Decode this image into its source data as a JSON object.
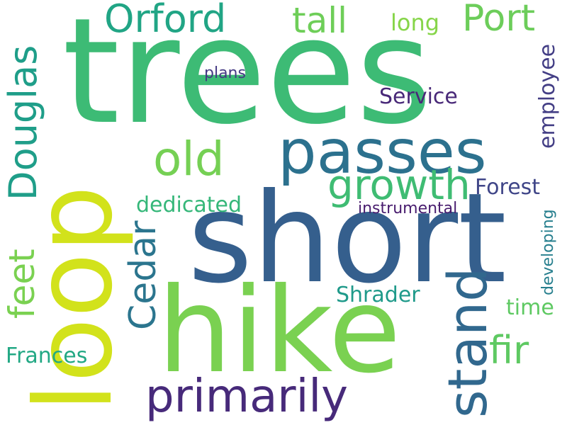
{
  "words": [
    {
      "text": "trees",
      "color": "#3dbb75"
    },
    {
      "text": "short",
      "color": "#355f8d"
    },
    {
      "text": "hike",
      "color": "#7ad151"
    },
    {
      "text": "loop",
      "color": "#d2e21b"
    },
    {
      "text": "passes",
      "color": "#2c718e"
    },
    {
      "text": "stand",
      "color": "#31688e"
    },
    {
      "text": "primarily",
      "color": "#472a7a"
    },
    {
      "text": "old",
      "color": "#75d054"
    },
    {
      "text": "growth",
      "color": "#3fbc73"
    },
    {
      "text": "Orford",
      "color": "#21a585"
    },
    {
      "text": "Port",
      "color": "#6ccd5a"
    },
    {
      "text": "tall",
      "color": "#6ece58"
    },
    {
      "text": "long",
      "color": "#86d549"
    },
    {
      "text": "Douglas",
      "color": "#1f9e89"
    },
    {
      "text": "Cedar",
      "color": "#2b758e"
    },
    {
      "text": "feet",
      "color": "#7ad151"
    },
    {
      "text": "fir",
      "color": "#5ec962"
    },
    {
      "text": "Service",
      "color": "#482878"
    },
    {
      "text": "employee",
      "color": "#433e85"
    },
    {
      "text": "plans",
      "color": "#443983"
    },
    {
      "text": "Forest",
      "color": "#404688"
    },
    {
      "text": "dedicated",
      "color": "#35b779"
    },
    {
      "text": "instrumental",
      "color": "#481c6e"
    },
    {
      "text": "developing",
      "color": "#277f8e"
    },
    {
      "text": "Shrader",
      "color": "#1f9a8a"
    },
    {
      "text": "time",
      "color": "#5ec962"
    },
    {
      "text": "Frances",
      "color": "#22a884"
    }
  ]
}
